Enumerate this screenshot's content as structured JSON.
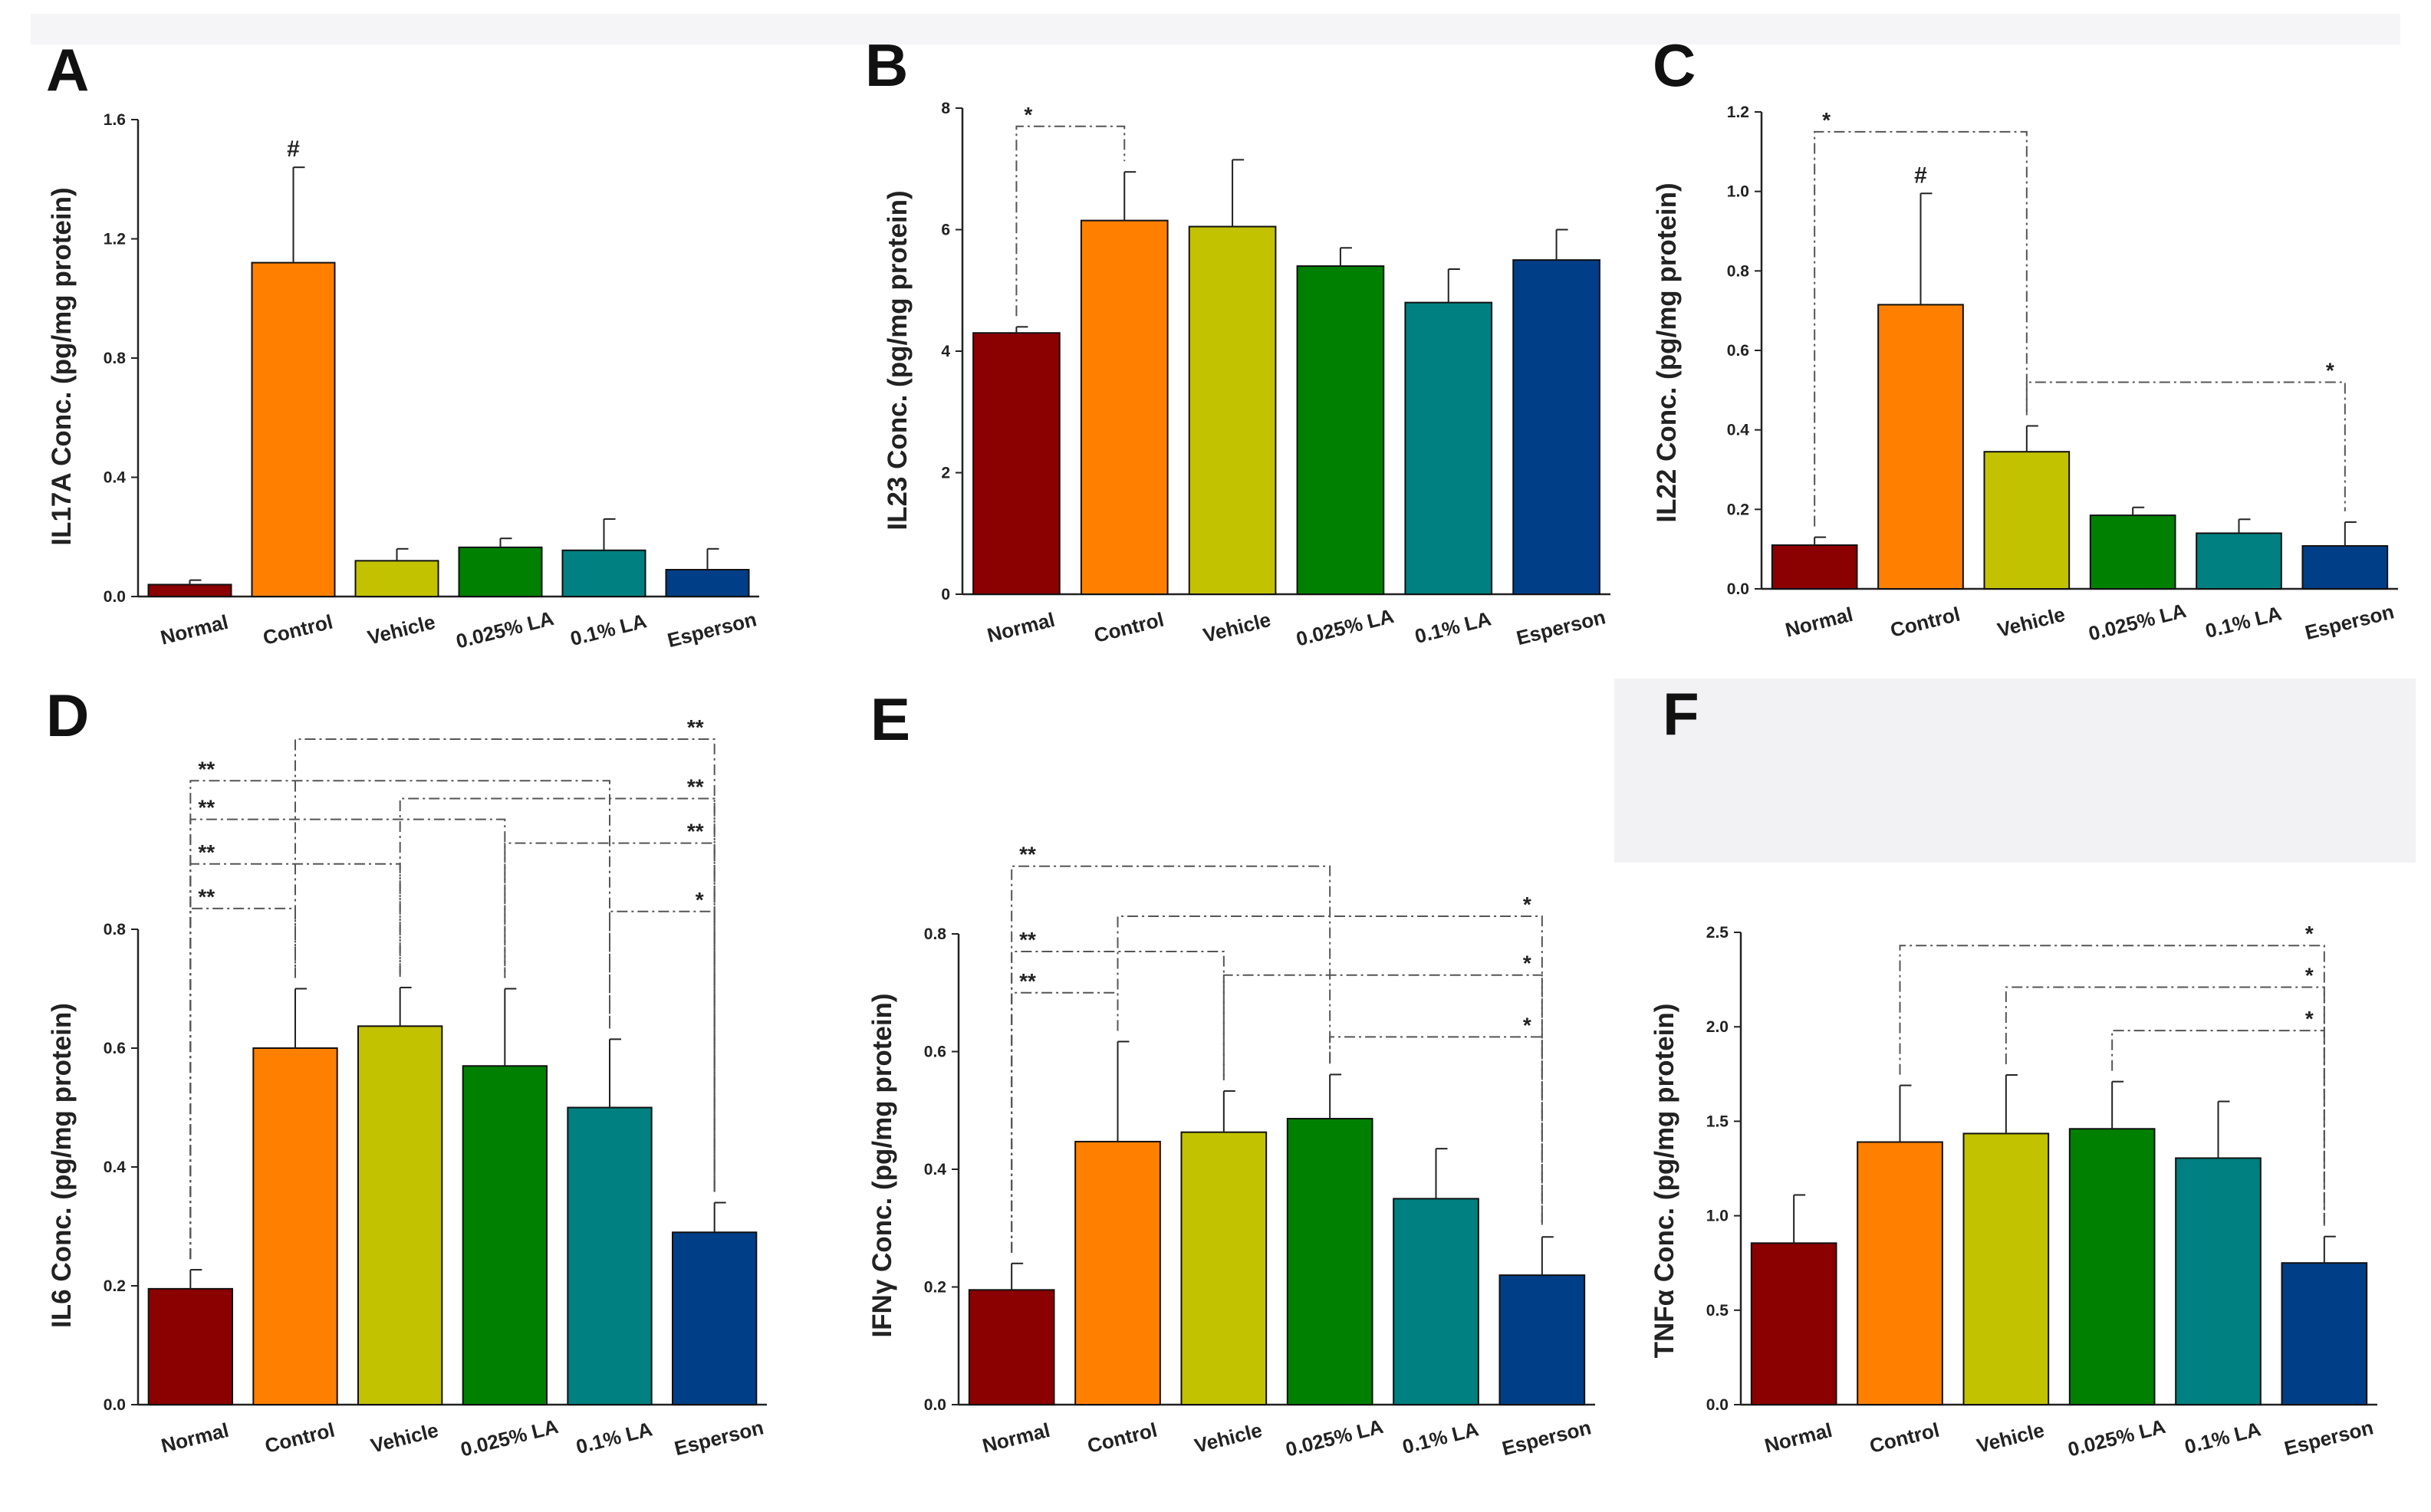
{
  "chart_data": [
    {
      "id": "A",
      "panel_label": "A",
      "type": "bar",
      "ylabel": "IL17A Conc. (pg/mg protein)",
      "categories": [
        "Normal",
        "Control",
        "Vehicle",
        "0.025% LA",
        "0.1% LA",
        "Esperson"
      ],
      "values": [
        0.04,
        1.12,
        0.12,
        0.165,
        0.155,
        0.09
      ],
      "errors": [
        0.015,
        0.32,
        0.04,
        0.03,
        0.105,
        0.07
      ],
      "ylim": [
        0,
        1.6
      ],
      "yticks": [
        0.0,
        0.4,
        0.8,
        1.2,
        1.6
      ],
      "ytick_labels": [
        "0.0",
        "0.4",
        "0.8",
        "1.2",
        "1.6"
      ],
      "bar_annotations": [
        {
          "bar": 1,
          "text": "#"
        }
      ],
      "significance": []
    },
    {
      "id": "B",
      "panel_label": "B",
      "type": "bar",
      "ylabel": "IL23 Conc. (pg/mg protein)",
      "categories": [
        "Normal",
        "Control",
        "Vehicle",
        "0.025% LA",
        "0.1% LA",
        "Esperson"
      ],
      "values": [
        4.3,
        6.15,
        6.05,
        5.4,
        4.8,
        5.5
      ],
      "errors": [
        0.1,
        0.8,
        1.1,
        0.3,
        0.55,
        0.5
      ],
      "ylim": [
        0,
        8
      ],
      "yticks": [
        0,
        2,
        4,
        6,
        8
      ],
      "ytick_labels": [
        "0",
        "2",
        "4",
        "6",
        "8"
      ],
      "bar_annotations": [],
      "significance": [
        {
          "from": 0,
          "to": 1,
          "level": 7.7,
          "label": "*"
        }
      ]
    },
    {
      "id": "C",
      "panel_label": "C",
      "type": "bar",
      "ylabel": "IL22 Conc. (pg/mg protein)",
      "categories": [
        "Normal",
        "Control",
        "Vehicle",
        "0.025% LA",
        "0.1% LA",
        "Esperson"
      ],
      "values": [
        0.11,
        0.715,
        0.345,
        0.185,
        0.14,
        0.108
      ],
      "errors": [
        0.02,
        0.28,
        0.065,
        0.02,
        0.035,
        0.06
      ],
      "ylim": [
        0,
        1.2
      ],
      "yticks": [
        0.0,
        0.2,
        0.4,
        0.6,
        0.8,
        1.0,
        1.2
      ],
      "ytick_labels": [
        "0.0",
        "0.2",
        "0.4",
        "0.6",
        "0.8",
        "1.0",
        "1.2"
      ],
      "bar_annotations": [
        {
          "bar": 1,
          "text": "#"
        }
      ],
      "significance": [
        {
          "from": 0,
          "to": 2,
          "level": 1.15,
          "label": "*"
        },
        {
          "from": 2,
          "to": 5,
          "level": 0.52,
          "label": "*"
        }
      ]
    },
    {
      "id": "D",
      "panel_label": "D",
      "type": "bar",
      "ylabel": "IL6 Conc. (pg/mg protein)",
      "categories": [
        "Normal",
        "Control",
        "Vehicle",
        "0.025% LA",
        "0.1% LA",
        "Esperson"
      ],
      "values": [
        0.195,
        0.6,
        0.637,
        0.57,
        0.5,
        0.29
      ],
      "errors": [
        0.032,
        0.1,
        0.065,
        0.13,
        0.115,
        0.05
      ],
      "ylim": [
        0,
        0.8
      ],
      "yticks": [
        0.0,
        0.2,
        0.4,
        0.6,
        0.8
      ],
      "ytick_labels": [
        "0.0",
        "0.2",
        "0.4",
        "0.6",
        "0.8"
      ],
      "bar_annotations": [],
      "significance": [
        {
          "from": 1,
          "to": 5,
          "level": 1.12,
          "label": "**"
        },
        {
          "from": 0,
          "to": 4,
          "level": 1.05,
          "label": "**"
        },
        {
          "from": 2,
          "to": 5,
          "level": 1.02,
          "label": "**"
        },
        {
          "from": 0,
          "to": 3,
          "level": 0.985,
          "label": "**"
        },
        {
          "from": 3,
          "to": 5,
          "level": 0.945,
          "label": "**"
        },
        {
          "from": 0,
          "to": 2,
          "level": 0.91,
          "label": "**"
        },
        {
          "from": 0,
          "to": 1,
          "level": 0.835,
          "label": "**"
        },
        {
          "from": 4,
          "to": 5,
          "level": 0.83,
          "label": "*"
        }
      ]
    },
    {
      "id": "E",
      "panel_label": "E",
      "type": "bar",
      "ylabel": "IFNγ Conc. (pg/mg protein)",
      "categories": [
        "Normal",
        "Control",
        "Vehicle",
        "0.025% LA",
        "0.1% LA",
        "Esperson"
      ],
      "values": [
        0.195,
        0.447,
        0.463,
        0.486,
        0.35,
        0.22
      ],
      "errors": [
        0.045,
        0.17,
        0.07,
        0.075,
        0.085,
        0.065
      ],
      "ylim": [
        0,
        0.8
      ],
      "yticks": [
        0.0,
        0.2,
        0.4,
        0.6,
        0.8
      ],
      "ytick_labels": [
        "0.0",
        "0.2",
        "0.4",
        "0.6",
        "0.8"
      ],
      "bar_annotations": [],
      "significance": [
        {
          "from": 0,
          "to": 3,
          "level": 0.915,
          "label": "**"
        },
        {
          "from": 1,
          "to": 5,
          "level": 0.83,
          "label": "*"
        },
        {
          "from": 0,
          "to": 2,
          "level": 0.77,
          "label": "**"
        },
        {
          "from": 2,
          "to": 5,
          "level": 0.73,
          "label": "*"
        },
        {
          "from": 0,
          "to": 1,
          "level": 0.7,
          "label": "**"
        },
        {
          "from": 3,
          "to": 5,
          "level": 0.625,
          "label": "*"
        }
      ]
    },
    {
      "id": "F",
      "panel_label": "F",
      "type": "bar",
      "ylabel": "TNFα Conc. (pg/mg protein)",
      "categories": [
        "Normal",
        "Control",
        "Vehicle",
        "0.025% LA",
        "0.1% LA",
        "Esperson"
      ],
      "values": [
        0.855,
        1.39,
        1.435,
        1.46,
        1.305,
        0.75
      ],
      "errors": [
        0.255,
        0.3,
        0.31,
        0.25,
        0.3,
        0.14
      ],
      "ylim": [
        0,
        2.5
      ],
      "yticks": [
        0.0,
        0.5,
        1.0,
        1.5,
        2.0,
        2.5
      ],
      "ytick_labels": [
        "0.0",
        "0.5",
        "1.0",
        "1.5",
        "2.0",
        "2.5"
      ],
      "bar_annotations": [],
      "significance": [
        {
          "from": 1,
          "to": 5,
          "level": 2.43,
          "label": "*"
        },
        {
          "from": 2,
          "to": 5,
          "level": 2.21,
          "label": "*"
        },
        {
          "from": 3,
          "to": 5,
          "level": 1.98,
          "label": "*"
        }
      ]
    }
  ],
  "bar_colors": [
    "#8b0000",
    "#ff8000",
    "#c2c200",
    "#008000",
    "#008080",
    "#003f87"
  ]
}
